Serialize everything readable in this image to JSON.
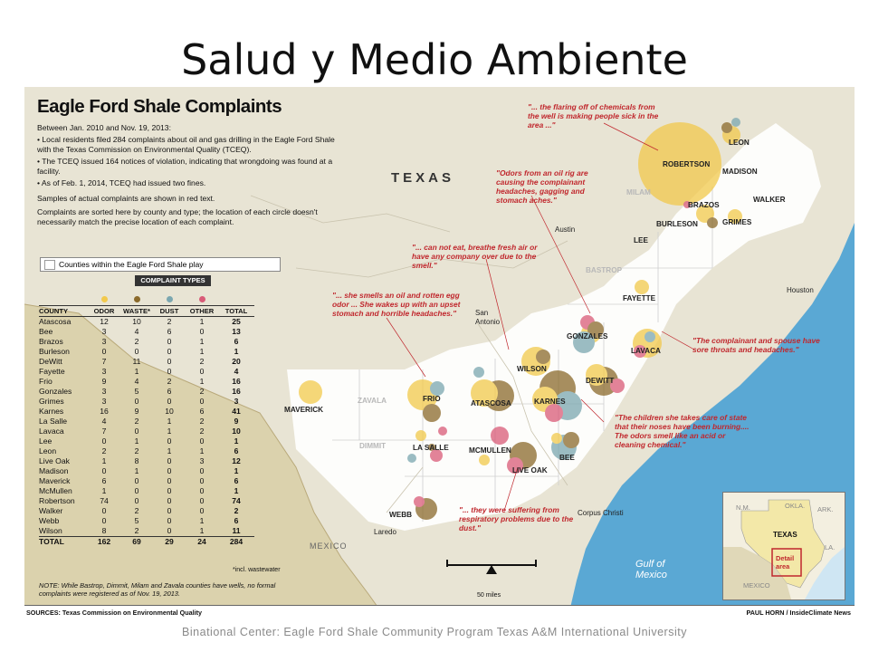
{
  "slide": {
    "title": "Salud y Medio Ambiente",
    "caption": "Binational Center: Eagle Ford Shale Community Program Texas A&M International University"
  },
  "infographic": {
    "headline": "Eagle Ford Shale Complaints",
    "intro": [
      "Between Jan. 2010 and Nov. 19, 2013:",
      "• Local residents filed 284 complaints about oil and gas drilling in the Eagle Ford Shale with the Texas Commission on Environmental Quality (TCEQ).",
      "• The TCEQ issued 164 notices of violation, indicating that wrongdoing was found at a facility.",
      "• As of Feb. 1, 2014, TCEQ had issued two fines.",
      "Samples of actual complaints are shown in red text.",
      "Complaints are sorted here by county and type; the location of each circle doesn't necessarily match the precise location of each complaint."
    ],
    "legend_label": "Counties within the Eagle Ford Shale play",
    "complaint_types_label": "COMPLAINT TYPES",
    "columns": [
      "COUNTY",
      "ODOR",
      "WASTE*",
      "DUST",
      "OTHER",
      "TOTAL"
    ],
    "type_colors": {
      "odor": "#f2c94c",
      "waste": "#8b6a2b",
      "dust": "#7ba7b0",
      "other": "#d95b78"
    },
    "rows": [
      [
        "Atascosa",
        "12",
        "10",
        "2",
        "1",
        "25"
      ],
      [
        "Bee",
        "3",
        "4",
        "6",
        "0",
        "13"
      ],
      [
        "Brazos",
        "3",
        "2",
        "0",
        "1",
        "6"
      ],
      [
        "Burleson",
        "0",
        "0",
        "0",
        "1",
        "1"
      ],
      [
        "DeWitt",
        "7",
        "11",
        "0",
        "2",
        "20"
      ],
      [
        "Fayette",
        "3",
        "1",
        "0",
        "0",
        "4"
      ],
      [
        "Frio",
        "9",
        "4",
        "2",
        "1",
        "16"
      ],
      [
        "Gonzales",
        "3",
        "5",
        "6",
        "2",
        "16"
      ],
      [
        "Grimes",
        "3",
        "0",
        "0",
        "0",
        "3"
      ],
      [
        "Karnes",
        "16",
        "9",
        "10",
        "6",
        "41"
      ],
      [
        "La Salle",
        "4",
        "2",
        "1",
        "2",
        "9"
      ],
      [
        "Lavaca",
        "7",
        "0",
        "1",
        "2",
        "10"
      ],
      [
        "Lee",
        "0",
        "1",
        "0",
        "0",
        "1"
      ],
      [
        "Leon",
        "2",
        "2",
        "1",
        "1",
        "6"
      ],
      [
        "Live Oak",
        "1",
        "8",
        "0",
        "3",
        "12"
      ],
      [
        "Madison",
        "0",
        "1",
        "0",
        "0",
        "1"
      ],
      [
        "Maverick",
        "6",
        "0",
        "0",
        "0",
        "6"
      ],
      [
        "McMullen",
        "1",
        "0",
        "0",
        "0",
        "1"
      ],
      [
        "Robertson",
        "74",
        "0",
        "0",
        "0",
        "74"
      ],
      [
        "Walker",
        "0",
        "2",
        "0",
        "0",
        "2"
      ],
      [
        "Webb",
        "0",
        "5",
        "0",
        "1",
        "6"
      ],
      [
        "Wilson",
        "8",
        "2",
        "0",
        "1",
        "11"
      ]
    ],
    "total_row": [
      "TOTAL",
      "162",
      "69",
      "29",
      "24",
      "284"
    ],
    "footnote": "*incl. wastewater",
    "note": "NOTE: While Bastrop, Dimmit, Milam and Zavala counties have wells, no formal complaints were registered as of Nov. 19, 2013.",
    "sources": "SOURCES: Texas Commission on Environmental Quality",
    "credit": "PAUL HORN / InsideClimate News"
  },
  "map": {
    "state_label": "TEXAS",
    "country_label": "MEXICO",
    "gulf_label": [
      "Gulf of",
      "Mexico"
    ],
    "scale_label": "50 miles",
    "county_labels": {
      "leon": "LEON",
      "robertson": "ROBERTSON",
      "madison": "MADISON",
      "milam": "MILAM",
      "walker": "WALKER",
      "brazos": "BRAZOS",
      "burleson": "BURLESON",
      "grimes": "GRIMES",
      "lee": "LEE",
      "bastrop": "BASTROP",
      "fayette": "FAYETTE",
      "gonzales": "GONZALES",
      "lavaca": "LAVACA",
      "wilson": "WILSON",
      "dewitt": "DEWITT",
      "karnes": "KARNES",
      "atascosa": "ATASCOSA",
      "frio": "FRIO",
      "zavala": "ZAVALA",
      "maverick": "MAVERICK",
      "dimmit": "DIMMIT",
      "la_salle": "LA SALLE",
      "mcmullen": "MCMULLEN",
      "live_oak": "LIVE OAK",
      "bee": "BEE",
      "webb": "WEBB"
    },
    "cities": {
      "austin": "Austin",
      "houston": "Houston",
      "san_antonio": [
        "San",
        "Antonio"
      ],
      "corpus_christi": "Corpus Christi",
      "laredo": "Laredo"
    },
    "quotes": {
      "q1": "\"... the flaring off of chemicals from the well is making people sick in the area ...\"",
      "q2": "\"Odors from an oil rig are causing the complainant headaches, gagging and stomach aches.\"",
      "q3": "\"... can not eat, breathe fresh air or have any company over due to the smell.\"",
      "q4": "\"... she smells an oil and rotten egg odor ... She wakes up with an upset stomach and horrible headaches.\"",
      "q5": "\"The complainant and spouse have sore throats and headaches.\"",
      "q6": "\"The children she takes care of state that their noses have been burning.... The odors smell like an acid or cleaning chemical.\"",
      "q7": "\"... they were suffering from respiratory problems due to the dust.\""
    },
    "inset": {
      "nm": "N.M.",
      "okla": "OKLA.",
      "ark": "ARK.",
      "texas": "TEXAS",
      "la": "LA.",
      "mexico": "MEXICO",
      "detail": [
        "Detail",
        "area"
      ]
    }
  }
}
